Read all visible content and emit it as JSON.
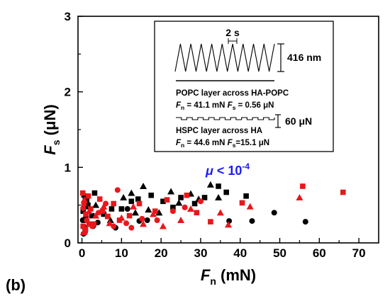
{
  "panel_label": "(b)",
  "chart_data": {
    "type": "scatter",
    "xlabel": {
      "main": "F",
      "sub": "n",
      "unit": " (mN)"
    },
    "ylabel": {
      "main": "F",
      "sub": "s",
      "unit": " (μN)"
    },
    "xlim": [
      -1,
      75
    ],
    "ylim": [
      0,
      3
    ],
    "xticks": [
      0,
      10,
      20,
      30,
      40,
      50,
      60,
      70
    ],
    "yticks": [
      0,
      1,
      2,
      3
    ],
    "annotation": {
      "mu": "μ",
      "rest": " < 10",
      "exp": "-4"
    },
    "colors": {
      "black": "#000000",
      "red": "#e8171b",
      "annotation": "#1a1aff"
    },
    "series": [
      {
        "marker": "square",
        "color": "#000000",
        "points": [
          [
            0.3,
            0.42
          ],
          [
            0.8,
            0.62
          ],
          [
            1.2,
            0.55
          ],
          [
            1.5,
            0.5
          ],
          [
            0.5,
            0.3
          ],
          [
            2.5,
            0.36
          ],
          [
            3.2,
            0.66
          ],
          [
            5.5,
            0.38
          ],
          [
            7.5,
            0.45
          ],
          [
            10,
            0.45
          ],
          [
            12.5,
            0.55
          ],
          [
            14.2,
            0.58
          ],
          [
            17.5,
            0.63
          ],
          [
            20.5,
            0.55
          ],
          [
            23,
            0.47
          ],
          [
            25,
            0.6
          ],
          [
            28.5,
            0.52
          ],
          [
            31,
            0.6
          ],
          [
            34.5,
            0.75
          ],
          [
            36.5,
            0.67
          ],
          [
            41.5,
            0.62
          ],
          [
            0.8,
            0.2
          ],
          [
            2.2,
            0.25
          ],
          [
            6.5,
            0.35
          ]
        ]
      },
      {
        "marker": "triangle",
        "color": "#000000",
        "points": [
          [
            0.6,
            0.64
          ],
          [
            1.4,
            0.48
          ],
          [
            3.5,
            0.5
          ],
          [
            7.2,
            0.3
          ],
          [
            10.5,
            0.6
          ],
          [
            12.5,
            0.66
          ],
          [
            15.5,
            0.75
          ],
          [
            16.8,
            0.44
          ],
          [
            19.5,
            0.4
          ],
          [
            22.5,
            0.68
          ],
          [
            24.5,
            0.53
          ],
          [
            27.5,
            0.65
          ],
          [
            29.5,
            0.58
          ],
          [
            32.5,
            0.77
          ],
          [
            34.5,
            0.6
          ],
          [
            13.5,
            0.4
          ]
        ]
      },
      {
        "marker": "circle",
        "color": "#000000",
        "points": [
          [
            0.2,
            0.3
          ],
          [
            1.0,
            0.35
          ],
          [
            4.0,
            0.27
          ],
          [
            8.5,
            0.2
          ],
          [
            11.5,
            0.45
          ],
          [
            14.5,
            0.29
          ],
          [
            16.5,
            0.3
          ],
          [
            37.2,
            0.29
          ],
          [
            43.0,
            0.29
          ],
          [
            48.6,
            0.4
          ],
          [
            56.5,
            0.28
          ],
          [
            0.4,
            0.12
          ],
          [
            2.8,
            0.22
          ]
        ]
      },
      {
        "marker": "square",
        "color": "#e8171b",
        "points": [
          [
            0.2,
            0.66
          ],
          [
            0.5,
            0.52
          ],
          [
            1.0,
            0.38
          ],
          [
            1.6,
            0.62
          ],
          [
            2.2,
            0.45
          ],
          [
            0.3,
            0.22
          ],
          [
            0.9,
            0.18
          ],
          [
            3.0,
            0.25
          ],
          [
            4.5,
            0.58
          ],
          [
            5.2,
            0.42
          ],
          [
            6.5,
            0.35
          ],
          [
            8.0,
            0.52
          ],
          [
            9.5,
            0.3
          ],
          [
            12.0,
            0.36
          ],
          [
            14.5,
            0.52
          ],
          [
            18.5,
            0.42
          ],
          [
            21.5,
            0.57
          ],
          [
            26.5,
            0.63
          ],
          [
            29.0,
            0.4
          ],
          [
            32.5,
            0.28
          ],
          [
            40.5,
            0.53
          ],
          [
            55.8,
            0.75
          ],
          [
            66.0,
            0.67
          ],
          [
            1.8,
            0.25
          ]
        ]
      },
      {
        "marker": "triangle",
        "color": "#e8171b",
        "points": [
          [
            0.6,
            0.57
          ],
          [
            1.8,
            0.42
          ],
          [
            3.5,
            0.36
          ],
          [
            5.5,
            0.48
          ],
          [
            7.0,
            0.26
          ],
          [
            10.0,
            0.33
          ],
          [
            13.0,
            0.48
          ],
          [
            15.5,
            0.25
          ],
          [
            18.0,
            0.38
          ],
          [
            20.5,
            0.22
          ],
          [
            25.0,
            0.3
          ],
          [
            27.5,
            0.45
          ],
          [
            35.0,
            0.4
          ],
          [
            37.0,
            0.24
          ],
          [
            42.5,
            0.48
          ],
          [
            55.0,
            0.6
          ],
          [
            0.4,
            0.14
          ]
        ]
      },
      {
        "marker": "circle",
        "color": "#e8171b",
        "points": [
          [
            0.3,
            0.46
          ],
          [
            1.2,
            0.3
          ],
          [
            2.6,
            0.22
          ],
          [
            4.2,
            0.4
          ],
          [
            6.0,
            0.52
          ],
          [
            8.0,
            0.22
          ],
          [
            9.0,
            0.7
          ],
          [
            11.2,
            0.26
          ],
          [
            15.2,
            0.32
          ],
          [
            19.0,
            0.3
          ],
          [
            23.0,
            0.42
          ],
          [
            26.0,
            0.47
          ],
          [
            30.0,
            0.55
          ],
          [
            0.8,
            0.14
          ],
          [
            12.5,
            0.2
          ]
        ]
      }
    ]
  },
  "inset": {
    "period_label": "2 s",
    "amplitude_label": "416 nm",
    "popc_title": "POPC layer across HA-POPC",
    "popc_fn_var": "F",
    "popc_fn_sub": "n",
    "popc_fn_val": " = 41.1 mN ",
    "popc_fs_var": "F",
    "popc_fs_sub": "s",
    "popc_fs_val": " = 0.56 μN",
    "scale_label": "60 μN",
    "hspc_title": "HSPC layer across HA",
    "hspc_fn_var": "F",
    "hspc_fn_sub": "n",
    "hspc_fn_val": " = 44.6 mN ",
    "hspc_fs_var": "F",
    "hspc_fs_sub": "s",
    "hspc_fs_val": "=15.1 μN"
  }
}
